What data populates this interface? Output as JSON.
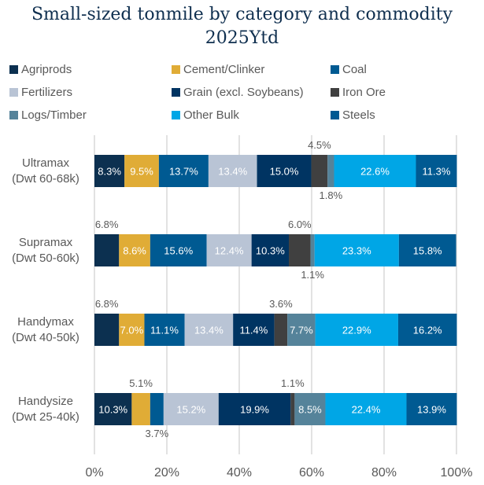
{
  "chart_data": {
    "type": "bar",
    "orientation": "horizontal",
    "stacked": "100%",
    "title": "Small-sized tonmile by category and commodity 2025Ytd",
    "categories": [
      "Ultramax (Dwt 60-68k)",
      "Supramax (Dwt 50-60k)",
      "Handymax (Dwt 40-50k)",
      "Handysize (Dwt 25-40k)"
    ],
    "category_lines": [
      [
        "Ultramax",
        "(Dwt 60-68k)"
      ],
      [
        "Supramax",
        "(Dwt 50-60k)"
      ],
      [
        "Handymax",
        "(Dwt 40-50k)"
      ],
      [
        "Handysize",
        "(Dwt 25-40k)"
      ]
    ],
    "series": [
      {
        "name": "Agriprods",
        "color": "#0c3050",
        "values": [
          8.3,
          6.8,
          6.8,
          10.3
        ]
      },
      {
        "name": "Cement/Clinker",
        "color": "#e0ac36",
        "values": [
          9.5,
          8.6,
          7.0,
          5.1
        ]
      },
      {
        "name": "Coal",
        "color": "#005a92",
        "values": [
          13.7,
          15.6,
          11.1,
          3.7
        ]
      },
      {
        "name": "Fertilizers",
        "color": "#b9c4d5",
        "values": [
          13.4,
          12.4,
          13.4,
          15.2
        ]
      },
      {
        "name": "Grain (excl. Soybeans)",
        "color": "#003462",
        "values": [
          15.0,
          10.3,
          11.4,
          19.9
        ]
      },
      {
        "name": "Iron Ore",
        "color": "#404040",
        "values": [
          4.5,
          6.0,
          3.6,
          1.1
        ]
      },
      {
        "name": "Logs/Timber",
        "color": "#55839a",
        "values": [
          1.8,
          1.1,
          7.7,
          8.5
        ]
      },
      {
        "name": "Other Bulk",
        "color": "#00a6e6",
        "values": [
          22.6,
          23.3,
          22.9,
          22.4
        ]
      },
      {
        "name": "Steels",
        "color": "#005a92",
        "values": [
          11.3,
          15.8,
          16.2,
          13.9
        ]
      }
    ],
    "xlim": [
      0,
      100
    ],
    "xticks": [
      "0%",
      "20%",
      "40%",
      "60%",
      "80%",
      "100%"
    ],
    "grid": true,
    "legend_position": "top"
  }
}
